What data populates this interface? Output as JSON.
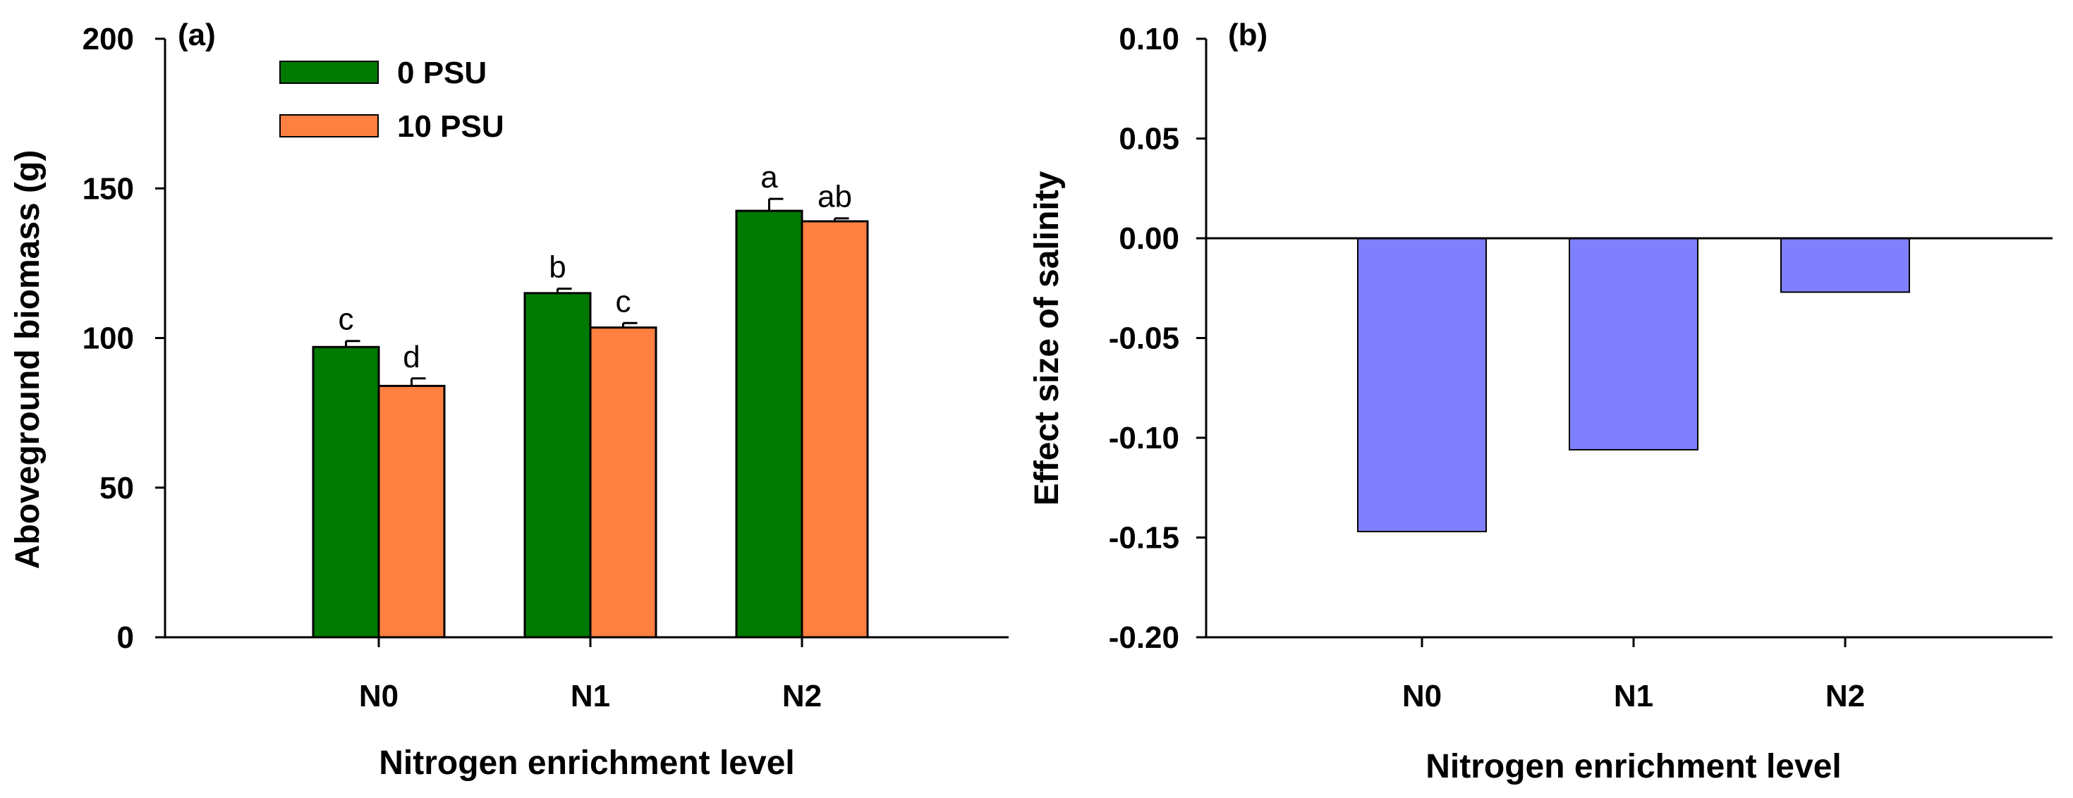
{
  "chart_data": [
    {
      "type": "bar",
      "panel_label": "(a)",
      "categories": [
        "N0",
        "N1",
        "N2"
      ],
      "series": [
        {
          "name": "0 PSU",
          "color": "#007a00",
          "values": [
            97,
            115,
            142.5
          ],
          "errors": [
            2,
            1.5,
            4
          ],
          "letters": [
            "c",
            "b",
            "a"
          ]
        },
        {
          "name": "10 PSU",
          "color": "#ff8040",
          "values": [
            84,
            103.5,
            139
          ],
          "errors": [
            2.5,
            1.5,
            1
          ],
          "letters": [
            "d",
            "c",
            "ab"
          ]
        }
      ],
      "xlabel": "Nitrogen enrichment level",
      "ylabel": "Aboveground biomass (g)",
      "ylim": [
        0,
        200
      ],
      "yticks": [
        0,
        50,
        100,
        150,
        200
      ],
      "ytick_labels": [
        "0",
        "50",
        "100",
        "150",
        "200"
      ],
      "legend_position": "top-left"
    },
    {
      "type": "bar",
      "panel_label": "(b)",
      "categories": [
        "N0",
        "N1",
        "N2"
      ],
      "series": [
        {
          "name": "Effect size",
          "color": "#8080ff",
          "values": [
            -0.147,
            -0.106,
            -0.027
          ]
        }
      ],
      "xlabel": "Nitrogen enrichment level",
      "ylabel": "Effect size of salinity",
      "ylim": [
        -0.2,
        0.1
      ],
      "yticks": [
        -0.2,
        -0.15,
        -0.1,
        -0.05,
        0,
        0.05,
        0.1
      ],
      "ytick_labels": [
        "-0.20",
        "-0.15",
        "-0.10",
        "-0.05",
        "0.00",
        "0.05",
        "0.10"
      ],
      "zero_line": true
    }
  ]
}
